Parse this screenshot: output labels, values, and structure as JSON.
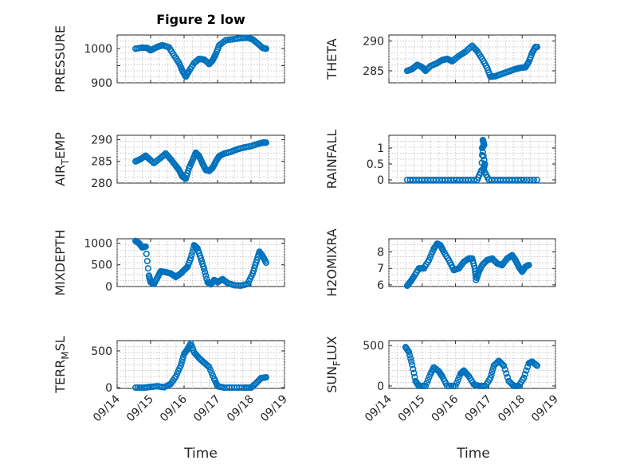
{
  "window": {
    "background": "#ffffff"
  },
  "colors": {
    "marker": "#0072BD",
    "axis": "#262626",
    "grid": "#b8b8b8"
  },
  "chart_data": [
    {
      "id": "pressure",
      "type": "scatter",
      "title": "Figure 2 low",
      "ylabel": "PRESSURE",
      "ylabel_sub": "",
      "xlim": [
        0,
        5
      ],
      "ylim": [
        900,
        1040
      ],
      "yticks": [
        900,
        950,
        1000
      ],
      "yticklabels": [
        "900",
        "",
        "1000"
      ],
      "xticklabels": [
        "09/14",
        "09/15",
        "09/16",
        "09/17",
        "09/18",
        "09/19"
      ],
      "show_xticklabels": false,
      "points": [
        [
          0.55,
          1000
        ],
        [
          0.75,
          1003
        ],
        [
          0.9,
          1002
        ],
        [
          1.0,
          995
        ],
        [
          1.2,
          1005
        ],
        [
          1.35,
          1010
        ],
        [
          1.55,
          1004
        ],
        [
          1.7,
          980
        ],
        [
          1.85,
          958
        ],
        [
          1.95,
          935
        ],
        [
          2.05,
          918
        ],
        [
          2.15,
          935
        ],
        [
          2.3,
          958
        ],
        [
          2.45,
          970
        ],
        [
          2.6,
          968
        ],
        [
          2.75,
          955
        ],
        [
          2.85,
          965
        ],
        [
          2.95,
          985
        ],
        [
          3.05,
          1010
        ],
        [
          3.25,
          1025
        ],
        [
          3.5,
          1028
        ],
        [
          3.7,
          1031
        ],
        [
          3.9,
          1032
        ],
        [
          4.05,
          1027
        ],
        [
          4.2,
          1015
        ],
        [
          4.35,
          1002
        ],
        [
          4.45,
          1000
        ]
      ]
    },
    {
      "id": "theta",
      "type": "scatter",
      "title": "",
      "ylabel": "THETA",
      "ylabel_sub": "",
      "xlim": [
        0,
        5
      ],
      "ylim": [
        283,
        291
      ],
      "yticks": [
        285,
        290
      ],
      "yticklabels": [
        "285",
        "290"
      ],
      "xticklabels": [
        "09/14",
        "09/15",
        "09/16",
        "09/17",
        "09/18",
        "09/19"
      ],
      "show_xticklabels": false,
      "points": [
        [
          0.55,
          285
        ],
        [
          0.7,
          285.3
        ],
        [
          0.85,
          286
        ],
        [
          1.0,
          285.6
        ],
        [
          1.1,
          285
        ],
        [
          1.25,
          285.8
        ],
        [
          1.45,
          286.3
        ],
        [
          1.6,
          286.8
        ],
        [
          1.75,
          287
        ],
        [
          1.9,
          286.6
        ],
        [
          2.1,
          287.5
        ],
        [
          2.3,
          288.2
        ],
        [
          2.5,
          289.2
        ],
        [
          2.65,
          288.3
        ],
        [
          2.8,
          287
        ],
        [
          2.95,
          285.5
        ],
        [
          3.05,
          284
        ],
        [
          3.2,
          284.1
        ],
        [
          3.4,
          284.5
        ],
        [
          3.6,
          284.9
        ],
        [
          3.8,
          285.3
        ],
        [
          3.95,
          285.5
        ],
        [
          4.1,
          285.6
        ],
        [
          4.2,
          286.5
        ],
        [
          4.3,
          288
        ],
        [
          4.4,
          289
        ],
        [
          4.45,
          289
        ]
      ]
    },
    {
      "id": "air_temp",
      "type": "scatter",
      "title": "",
      "ylabel": "AIR",
      "ylabel_sub": "T",
      "ylabel_rest": "EMP",
      "xlim": [
        0,
        5
      ],
      "ylim": [
        280,
        291
      ],
      "yticks": [
        280,
        285,
        290
      ],
      "yticklabels": [
        "280",
        "285",
        "290"
      ],
      "xticklabels": [
        "09/14",
        "09/15",
        "09/16",
        "09/17",
        "09/18",
        "09/19"
      ],
      "show_xticklabels": false,
      "points": [
        [
          0.55,
          285
        ],
        [
          0.7,
          285.5
        ],
        [
          0.85,
          286.3
        ],
        [
          0.95,
          285.6
        ],
        [
          1.1,
          284.6
        ],
        [
          1.3,
          285.8
        ],
        [
          1.45,
          286.8
        ],
        [
          1.6,
          285.5
        ],
        [
          1.75,
          284
        ],
        [
          1.85,
          283
        ],
        [
          1.95,
          281.5
        ],
        [
          2.05,
          281
        ],
        [
          2.15,
          283.5
        ],
        [
          2.25,
          285.2
        ],
        [
          2.35,
          287
        ],
        [
          2.45,
          286.2
        ],
        [
          2.55,
          284.5
        ],
        [
          2.65,
          283
        ],
        [
          2.75,
          282.8
        ],
        [
          2.85,
          283.5
        ],
        [
          2.95,
          285
        ],
        [
          3.05,
          286.2
        ],
        [
          3.2,
          286.8
        ],
        [
          3.4,
          287.2
        ],
        [
          3.6,
          287.8
        ],
        [
          3.8,
          288.2
        ],
        [
          4.0,
          288.5
        ],
        [
          4.2,
          289
        ],
        [
          4.35,
          289.3
        ],
        [
          4.45,
          289.3
        ]
      ]
    },
    {
      "id": "rainfall",
      "type": "scatter",
      "title": "",
      "ylabel": "RAINFALL",
      "ylabel_sub": "",
      "xlim": [
        0,
        5
      ],
      "ylim": [
        -0.1,
        1.4
      ],
      "yticks": [
        0,
        0.5,
        1
      ],
      "yticklabels": [
        "0",
        "0.5",
        "1"
      ],
      "xticklabels": [
        "09/14",
        "09/15",
        "09/16",
        "09/17",
        "09/18",
        "09/19"
      ],
      "show_xticklabels": false,
      "points": [
        [
          0.55,
          0
        ],
        [
          0.9,
          0
        ],
        [
          1.25,
          0
        ],
        [
          1.6,
          0
        ],
        [
          1.95,
          0
        ],
        [
          2.3,
          0
        ],
        [
          2.65,
          0
        ],
        [
          2.78,
          0.3
        ],
        [
          2.82,
          1.25
        ],
        [
          2.86,
          1.1
        ],
        [
          2.8,
          1.0
        ],
        [
          2.88,
          0.5
        ],
        [
          2.84,
          0.32
        ],
        [
          3.0,
          0
        ],
        [
          3.35,
          0
        ],
        [
          3.7,
          0
        ],
        [
          4.05,
          0
        ],
        [
          4.45,
          0
        ]
      ]
    },
    {
      "id": "mixdepth",
      "type": "scatter",
      "title": "",
      "ylabel": "MIXDEPTH",
      "ylabel_sub": "",
      "xlim": [
        0,
        5
      ],
      "ylim": [
        0,
        1100
      ],
      "yticks": [
        0,
        500,
        1000
      ],
      "yticklabels": [
        "0",
        "500",
        "1000"
      ],
      "xticklabels": [
        "09/14",
        "09/15",
        "09/16",
        "09/17",
        "09/18",
        "09/19"
      ],
      "show_xticklabels": false,
      "points": [
        [
          0.55,
          1050
        ],
        [
          0.65,
          1000
        ],
        [
          0.75,
          900
        ],
        [
          0.85,
          920
        ],
        [
          0.95,
          250
        ],
        [
          1.0,
          100
        ],
        [
          1.1,
          60
        ],
        [
          1.2,
          200
        ],
        [
          1.3,
          350
        ],
        [
          1.45,
          330
        ],
        [
          1.6,
          300
        ],
        [
          1.75,
          220
        ],
        [
          1.9,
          300
        ],
        [
          2.0,
          380
        ],
        [
          2.1,
          450
        ],
        [
          2.2,
          650
        ],
        [
          2.3,
          950
        ],
        [
          2.4,
          880
        ],
        [
          2.5,
          650
        ],
        [
          2.6,
          400
        ],
        [
          2.7,
          100
        ],
        [
          2.8,
          50
        ],
        [
          2.9,
          150
        ],
        [
          3.0,
          100
        ],
        [
          3.15,
          170
        ],
        [
          3.3,
          80
        ],
        [
          3.5,
          30
        ],
        [
          3.7,
          20
        ],
        [
          3.9,
          60
        ],
        [
          4.05,
          300
        ],
        [
          4.15,
          550
        ],
        [
          4.25,
          800
        ],
        [
          4.35,
          700
        ],
        [
          4.45,
          550
        ]
      ]
    },
    {
      "id": "h2omixra",
      "type": "scatter",
      "title": "",
      "ylabel": "H2OMIXRA",
      "ylabel_sub": "",
      "xlim": [
        0,
        5
      ],
      "ylim": [
        5.9,
        8.8
      ],
      "yticks": [
        6,
        7,
        8
      ],
      "yticklabels": [
        "6",
        "7",
        "8"
      ],
      "xticklabels": [
        "09/14",
        "09/15",
        "09/16",
        "09/17",
        "09/18",
        "09/19"
      ],
      "show_xticklabels": false,
      "points": [
        [
          0.55,
          5.95
        ],
        [
          0.65,
          6.2
        ],
        [
          0.75,
          6.5
        ],
        [
          0.9,
          7.0
        ],
        [
          1.05,
          7.0
        ],
        [
          1.2,
          7.5
        ],
        [
          1.35,
          8.2
        ],
        [
          1.45,
          8.5
        ],
        [
          1.55,
          8.4
        ],
        [
          1.65,
          8.0
        ],
        [
          1.8,
          7.5
        ],
        [
          1.95,
          6.9
        ],
        [
          2.1,
          7.0
        ],
        [
          2.25,
          7.4
        ],
        [
          2.4,
          7.6
        ],
        [
          2.5,
          7.6
        ],
        [
          2.58,
          7.0
        ],
        [
          2.62,
          6.3
        ],
        [
          2.7,
          6.8
        ],
        [
          2.8,
          7.2
        ],
        [
          2.95,
          7.5
        ],
        [
          3.1,
          7.6
        ],
        [
          3.25,
          7.3
        ],
        [
          3.4,
          7.2
        ],
        [
          3.55,
          7.6
        ],
        [
          3.7,
          7.8
        ],
        [
          3.8,
          7.5
        ],
        [
          3.9,
          7.1
        ],
        [
          4.0,
          6.8
        ],
        [
          4.1,
          7.1
        ],
        [
          4.2,
          7.2
        ]
      ]
    },
    {
      "id": "terr_msl",
      "type": "scatter",
      "title": "",
      "ylabel": "TERR",
      "ylabel_sub": "M",
      "ylabel_rest": "SL",
      "xlim": [
        0,
        5
      ],
      "ylim": [
        -10,
        640
      ],
      "yticks": [
        0,
        500
      ],
      "yticklabels": [
        "0",
        "500"
      ],
      "xticklabels": [
        "09/14",
        "09/15",
        "09/16",
        "09/17",
        "09/18",
        "09/19"
      ],
      "show_xticklabels": true,
      "points": [
        [
          0.55,
          0
        ],
        [
          0.8,
          0
        ],
        [
          1.0,
          10
        ],
        [
          1.2,
          20
        ],
        [
          1.4,
          5
        ],
        [
          1.6,
          50
        ],
        [
          1.75,
          150
        ],
        [
          1.9,
          300
        ],
        [
          2.0,
          460
        ],
        [
          2.1,
          520
        ],
        [
          2.2,
          600
        ],
        [
          2.3,
          480
        ],
        [
          2.45,
          400
        ],
        [
          2.6,
          340
        ],
        [
          2.75,
          280
        ],
        [
          2.9,
          120
        ],
        [
          3.0,
          20
        ],
        [
          3.2,
          0
        ],
        [
          3.5,
          0
        ],
        [
          3.8,
          0
        ],
        [
          4.0,
          0
        ],
        [
          4.15,
          60
        ],
        [
          4.3,
          130
        ],
        [
          4.45,
          140
        ]
      ]
    },
    {
      "id": "sun_flux",
      "type": "scatter",
      "title": "",
      "ylabel": "SUN",
      "ylabel_sub": "F",
      "ylabel_rest": "LUX",
      "xlim": [
        0,
        5
      ],
      "ylim": [
        -30,
        560
      ],
      "yticks": [
        0,
        500
      ],
      "yticklabels": [
        "0",
        "500"
      ],
      "xticklabels": [
        "09/14",
        "09/15",
        "09/16",
        "09/17",
        "09/18",
        "09/19"
      ],
      "show_xticklabels": true,
      "points": [
        [
          0.5,
          480
        ],
        [
          0.6,
          420
        ],
        [
          0.7,
          260
        ],
        [
          0.8,
          60
        ],
        [
          0.9,
          0
        ],
        [
          1.1,
          0
        ],
        [
          1.25,
          150
        ],
        [
          1.35,
          230
        ],
        [
          1.5,
          180
        ],
        [
          1.6,
          120
        ],
        [
          1.75,
          0
        ],
        [
          2.0,
          0
        ],
        [
          2.15,
          150
        ],
        [
          2.25,
          190
        ],
        [
          2.4,
          120
        ],
        [
          2.55,
          20
        ],
        [
          2.7,
          0
        ],
        [
          2.9,
          0
        ],
        [
          3.05,
          100
        ],
        [
          3.15,
          250
        ],
        [
          3.3,
          310
        ],
        [
          3.45,
          250
        ],
        [
          3.6,
          60
        ],
        [
          3.75,
          0
        ],
        [
          3.9,
          0
        ],
        [
          4.05,
          100
        ],
        [
          4.2,
          280
        ],
        [
          4.3,
          300
        ],
        [
          4.45,
          250
        ]
      ]
    }
  ],
  "xlabel": "Time"
}
